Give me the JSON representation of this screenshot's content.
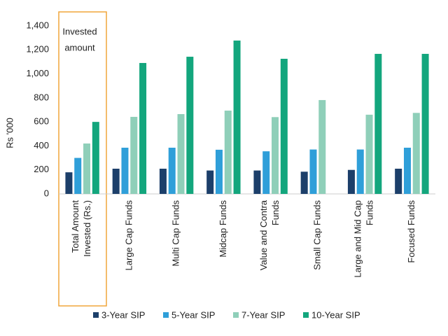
{
  "chart_data": {
    "type": "bar",
    "y_label": "Rs '000",
    "annotation": "Invested\namount",
    "categories": [
      "Total Amount\nInvested (Rs.)",
      "Large Cap Funds",
      "Multi Cap Funds",
      "Midcap Funds",
      "Value and Contra\nFunds",
      "Small Cap Funds",
      "Large and Mid Cap\nFunds",
      "Focused Funds"
    ],
    "series": [
      {
        "name": "3-Year SIP",
        "color": "#1c3f6a",
        "values": [
          180,
          210,
          210,
          195,
          195,
          185,
          200,
          210
        ]
      },
      {
        "name": "5-Year SIP",
        "color": "#2f9fd9",
        "values": [
          300,
          385,
          385,
          368,
          355,
          370,
          370,
          385
        ]
      },
      {
        "name": "7-Year SIP",
        "color": "#8fcfb9",
        "values": [
          420,
          642,
          665,
          694,
          640,
          782,
          660,
          675
        ]
      },
      {
        "name": "10-Year SIP",
        "color": "#13a67d",
        "values": [
          600,
          1091,
          1143,
          1278,
          1126,
          null,
          1167,
          1167
        ]
      }
    ],
    "ylim": [
      0,
      1400
    ],
    "yticks": [
      0,
      200,
      400,
      600,
      800,
      {
        "value": 1000,
        "label": "1,000"
      },
      {
        "value": 1200,
        "label": "1,200"
      },
      {
        "value": 1400,
        "label": "1,400"
      }
    ],
    "legend": "bottom"
  }
}
